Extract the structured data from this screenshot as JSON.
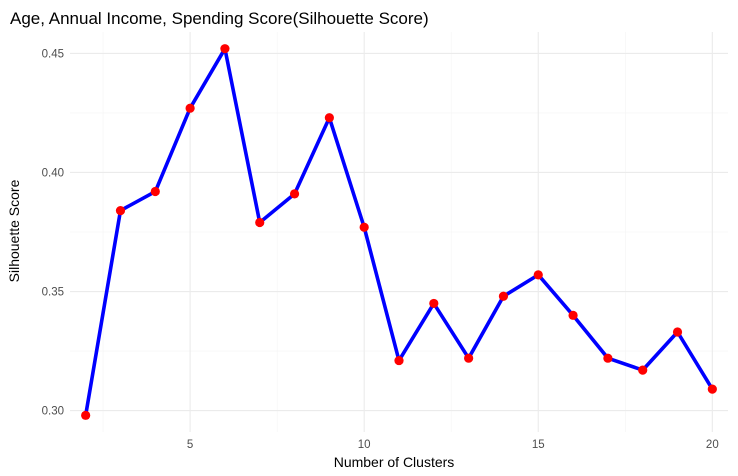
{
  "chart_data": {
    "type": "line",
    "title": "Age, Annual Income, Spending Score(Silhouette Score)",
    "xlabel": "Number of Clusters",
    "ylabel": "Silhouette Score",
    "x": [
      2,
      3,
      4,
      5,
      6,
      7,
      8,
      9,
      10,
      11,
      12,
      13,
      14,
      15,
      16,
      17,
      18,
      19,
      20
    ],
    "y": [
      0.298,
      0.384,
      0.392,
      0.427,
      0.452,
      0.379,
      0.391,
      0.423,
      0.377,
      0.321,
      0.345,
      0.322,
      0.348,
      0.357,
      0.34,
      0.322,
      0.317,
      0.333,
      0.309
    ],
    "xlim": [
      1.55,
      20.45
    ],
    "ylim": [
      0.291,
      0.459
    ],
    "xticks": [
      5,
      10,
      15,
      20
    ],
    "yticks": [
      0.3,
      0.35,
      0.4,
      0.45
    ],
    "xtick_labels": [
      "5",
      "10",
      "15",
      "20"
    ],
    "ytick_labels": [
      "0.30",
      "0.35",
      "0.40",
      "0.45"
    ],
    "line_color": "#0000ff",
    "point_color": "#ff0000",
    "grid": true,
    "legend": "none"
  }
}
